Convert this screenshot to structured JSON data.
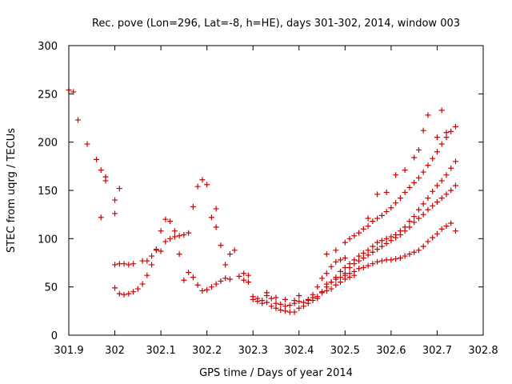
{
  "chart_data": {
    "type": "scatter",
    "title": "Rec. pove (Lon=296, Lat=-8, h=HE), days 301-302, 2014, window 003",
    "xlabel": "GPS time / Days of year 2014",
    "ylabel": "STEC from uqrg / TECUs",
    "xlim": [
      301.9,
      302.8
    ],
    "ylim": [
      0,
      300
    ],
    "xticks": [
      "301.9",
      "302",
      "302.1",
      "302.2",
      "302.3",
      "302.4",
      "302.5",
      "302.6",
      "302.7",
      "302.8"
    ],
    "yticks": [
      "0",
      "50",
      "100",
      "150",
      "200",
      "250",
      "300"
    ],
    "marker": "+",
    "marker_color": "#cc0000",
    "grid": false,
    "legend": "none",
    "series": [
      {
        "x": [
          301.9,
          301.91,
          301.92,
          301.94,
          301.96,
          301.97,
          301.98,
          301.98,
          302.0,
          302.01
        ],
        "y": [
          254,
          252,
          223,
          198,
          182,
          171,
          164,
          160,
          140,
          152
        ]
      },
      {
        "x": [
          301.97,
          302.0,
          302.0,
          302.01,
          302.02,
          302.03,
          302.04,
          302.06,
          302.07,
          302.08,
          302.09,
          302.1,
          302.11,
          302.12,
          302.13,
          302.14,
          302.15,
          302.16,
          302.17,
          302.18,
          302.19,
          302.2,
          302.21,
          302.22
        ],
        "y": [
          122,
          126,
          73,
          74,
          74,
          73,
          74,
          77,
          77,
          82,
          89,
          87,
          97,
          100,
          102,
          103,
          104,
          106,
          133,
          154,
          161,
          156,
          122,
          131
        ]
      },
      {
        "x": [
          302.0,
          302.01,
          302.02,
          302.03,
          302.04,
          302.05,
          302.06,
          302.07,
          302.08,
          302.09,
          302.1,
          302.11,
          302.12,
          302.13,
          302.14,
          302.15,
          302.16,
          302.17,
          302.18,
          302.19,
          302.2,
          302.21,
          302.22,
          302.23,
          302.24,
          302.25
        ],
        "y": [
          49,
          43,
          42,
          43,
          45,
          48,
          53,
          62,
          73,
          88,
          108,
          120,
          118,
          108,
          84,
          57,
          65,
          60,
          52,
          46,
          47,
          50,
          53,
          56,
          59,
          58
        ]
      },
      {
        "x": [
          302.22,
          302.23,
          302.24,
          302.25,
          302.26,
          302.27,
          302.28,
          302.29,
          302.3,
          302.31,
          302.32,
          302.33,
          302.34,
          302.35,
          302.36,
          302.37,
          302.38,
          302.39,
          302.4,
          302.41,
          302.42,
          302.43,
          302.44,
          302.45,
          302.46,
          302.47,
          302.48,
          302.49,
          302.5
        ],
        "y": [
          112,
          93,
          73,
          84,
          88,
          61,
          64,
          62,
          37,
          35,
          33,
          44,
          30,
          28,
          26,
          25,
          24,
          24,
          28,
          30,
          36,
          42,
          50,
          59,
          64,
          71,
          76,
          78,
          80
        ]
      },
      {
        "x": [
          302.28,
          302.29,
          302.3,
          302.31,
          302.32,
          302.33,
          302.34,
          302.35,
          302.36,
          302.37,
          302.38,
          302.39,
          302.4,
          302.41,
          302.42,
          302.43,
          302.44,
          302.45,
          302.46,
          302.47,
          302.48,
          302.49,
          302.5,
          302.51,
          302.52
        ],
        "y": [
          57,
          55,
          40,
          38,
          36,
          34,
          38,
          33,
          32,
          30,
          31,
          33,
          35,
          34,
          33,
          36,
          40,
          44,
          46,
          48,
          52,
          55,
          58,
          60,
          62
        ]
      },
      {
        "x": [
          302.33,
          302.35,
          302.37,
          302.39,
          302.4,
          302.42,
          302.43,
          302.44,
          302.45,
          302.46,
          302.47,
          302.48,
          302.49,
          302.5,
          302.51,
          302.52,
          302.53,
          302.54,
          302.55,
          302.56,
          302.57,
          302.58,
          302.59,
          302.6,
          302.61,
          302.62,
          302.63,
          302.64,
          302.65,
          302.66,
          302.67,
          302.68,
          302.69,
          302.7,
          302.71,
          302.72,
          302.73,
          302.74
        ],
        "y": [
          41,
          39,
          37,
          36,
          41,
          37,
          39,
          38,
          45,
          50,
          55,
          60,
          66,
          70,
          74,
          78,
          82,
          85,
          88,
          92,
          96,
          98,
          100,
          102,
          104,
          108,
          112,
          118,
          123,
          130,
          136,
          142,
          149,
          155,
          160,
          166,
          173,
          180
        ]
      },
      {
        "x": [
          302.5,
          302.51,
          302.52,
          302.53,
          302.54,
          302.55,
          302.56,
          302.57,
          302.58,
          302.59,
          302.6,
          302.61,
          302.62,
          302.63,
          302.64,
          302.65,
          302.66,
          302.67,
          302.68,
          302.69,
          302.7,
          302.71,
          302.72,
          302.73,
          302.74
        ],
        "y": [
          64,
          70,
          74,
          77,
          80,
          83,
          86,
          89,
          92,
          95,
          98,
          101,
          104,
          108,
          112,
          117,
          121,
          125,
          130,
          134,
          138,
          142,
          146,
          150,
          155
        ]
      },
      {
        "x": [
          302.46,
          302.48,
          302.5,
          302.51,
          302.52,
          302.53,
          302.54,
          302.55,
          302.56,
          302.57,
          302.58,
          302.59,
          302.6,
          302.61,
          302.62,
          302.63,
          302.64,
          302.65,
          302.66,
          302.67,
          302.68,
          302.69,
          302.7,
          302.71,
          302.72,
          302.73,
          302.74
        ],
        "y": [
          84,
          88,
          96,
          100,
          103,
          106,
          110,
          113,
          118,
          121,
          124,
          128,
          132,
          137,
          142,
          148,
          153,
          158,
          163,
          169,
          176,
          183,
          190,
          198,
          205,
          211,
          216
        ]
      },
      {
        "x": [
          302.55,
          302.57,
          302.59,
          302.61,
          302.63,
          302.65,
          302.66,
          302.67,
          302.68,
          302.7,
          302.71,
          302.72
        ],
        "y": [
          121,
          146,
          148,
          166,
          171,
          184,
          192,
          212,
          228,
          205,
          233,
          210
        ]
      },
      {
        "x": [
          302.46,
          302.47,
          302.48,
          302.49,
          302.5,
          302.51,
          302.52,
          302.53,
          302.54,
          302.55,
          302.56,
          302.57,
          302.58,
          302.59,
          302.6,
          302.61,
          302.62,
          302.63,
          302.64,
          302.65,
          302.66,
          302.67,
          302.68,
          302.69,
          302.7,
          302.71,
          302.72,
          302.73,
          302.74
        ],
        "y": [
          53,
          55,
          58,
          60,
          62,
          64,
          66,
          69,
          70,
          72,
          74,
          76,
          77,
          78,
          78,
          79,
          80,
          82,
          84,
          86,
          88,
          92,
          97,
          101,
          105,
          110,
          113,
          116,
          108
        ]
      }
    ]
  }
}
